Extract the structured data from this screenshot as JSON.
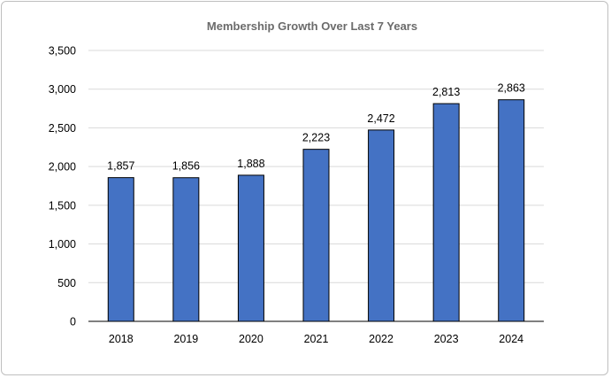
{
  "chart_data": {
    "type": "bar",
    "title": "Membership Growth Over Last 7 Years",
    "xlabel": "",
    "ylabel": "",
    "categories": [
      "2018",
      "2019",
      "2020",
      "2021",
      "2022",
      "2023",
      "2024"
    ],
    "values": [
      1857,
      1856,
      1888,
      2223,
      2472,
      2813,
      2863
    ],
    "value_labels": [
      "1,857",
      "1,856",
      "1,888",
      "2,223",
      "2,472",
      "2,813",
      "2,863"
    ],
    "ylim": [
      0,
      3500
    ],
    "yticks": [
      0,
      500,
      1000,
      1500,
      2000,
      2500,
      3000,
      3500
    ],
    "ytick_labels": [
      "0",
      "500",
      "1,000",
      "1,500",
      "2,000",
      "2,500",
      "3,000",
      "3,500"
    ],
    "grid": true,
    "legend": "none",
    "colors": {
      "bar_fill": "#4472c4",
      "bar_stroke": "#000000",
      "grid": "#d9d9d9",
      "title": "#6b6b6b"
    }
  }
}
